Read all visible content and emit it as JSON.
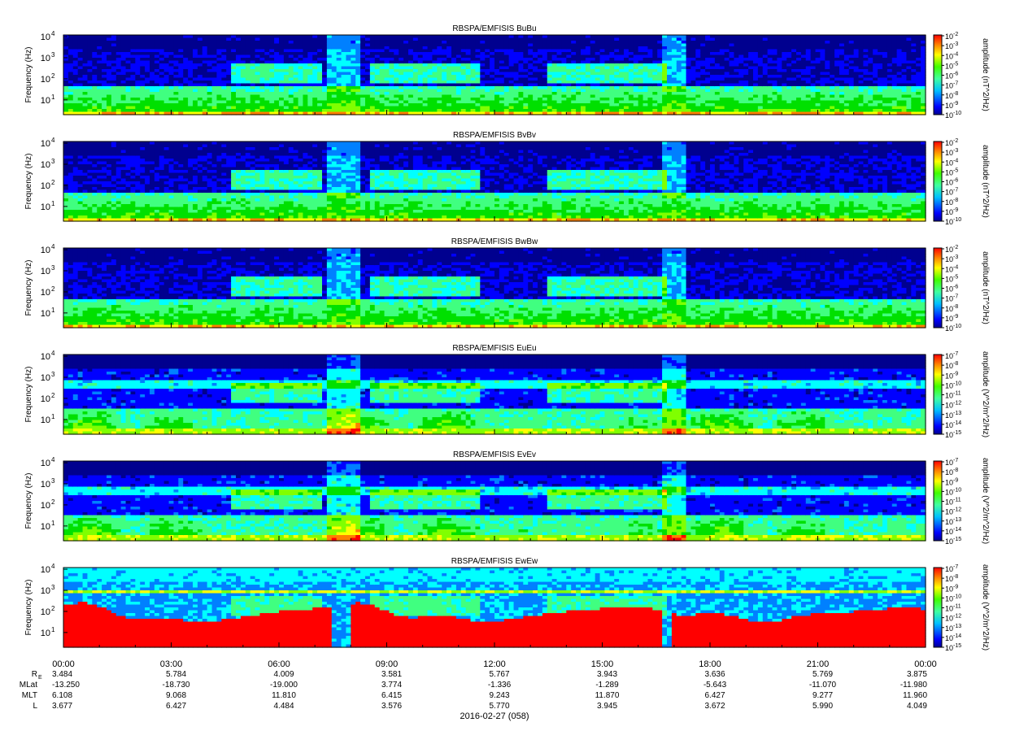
{
  "chart_data": {
    "type": "heatmap",
    "date_label": "2016-02-27 (058)",
    "time_ticks": [
      "00:00",
      "03:00",
      "06:00",
      "09:00",
      "12:00",
      "15:00",
      "18:00",
      "21:00",
      "00:00"
    ],
    "ylabel": "Frequency (Hz)",
    "y_scale": "log",
    "ylim": [
      2,
      12000
    ],
    "y_ticks": [
      {
        "value": 10,
        "mant": "10",
        "exp": "1"
      },
      {
        "value": 100,
        "mant": "10",
        "exp": "2"
      },
      {
        "value": 1000,
        "mant": "10",
        "exp": "3"
      },
      {
        "value": 10000,
        "mant": "10",
        "exp": "4"
      }
    ],
    "colormap": [
      "#00008f",
      "#0000ff",
      "#0080ff",
      "#00ffff",
      "#40ff80",
      "#00e000",
      "#80ff00",
      "#ffff00",
      "#ff8000",
      "#ff0000"
    ],
    "panels": [
      {
        "title": "RBSPA/EMFISIS  BuBu",
        "cbar_label": "amplitude (nT^2/Hz)",
        "cbar_exps": [
          "-2",
          "-3",
          "-4",
          "-5",
          "-6",
          "-7",
          "-8",
          "-9",
          "-10"
        ]
      },
      {
        "title": "RBSPA/EMFISIS  BvBv",
        "cbar_label": "amplitude (nT^2/Hz)",
        "cbar_exps": [
          "-2",
          "-3",
          "-4",
          "-5",
          "-6",
          "-7",
          "-8",
          "-9",
          "-10"
        ]
      },
      {
        "title": "RBSPA/EMFISIS  BwBw",
        "cbar_label": "amplitude (nT^2/Hz)",
        "cbar_exps": [
          "-2",
          "-3",
          "-4",
          "-5",
          "-6",
          "-7",
          "-8",
          "-9",
          "-10"
        ]
      },
      {
        "title": "RBSPA/EMFISIS  EuEu",
        "cbar_label": "amplitude (V^2/m^2/Hz)",
        "cbar_exps": [
          "-7",
          "-8",
          "-9",
          "-10",
          "-11",
          "-12",
          "-13",
          "-14",
          "-15"
        ]
      },
      {
        "title": "RBSPA/EMFISIS  EvEv",
        "cbar_label": "amplitude (V^2/m^2/Hz)",
        "cbar_exps": [
          "-7",
          "-8",
          "-9",
          "-10",
          "-11",
          "-12",
          "-13",
          "-14",
          "-15"
        ]
      },
      {
        "title": "RBSPA/EMFISIS  EwEw",
        "cbar_label": "amplitude (V^2/m^2/Hz)",
        "cbar_exps": [
          "-7",
          "-8",
          "-9",
          "-10",
          "-11",
          "-12",
          "-13",
          "-14",
          "-15"
        ]
      }
    ],
    "ephemeris": [
      {
        "label": "R",
        "sub": "E",
        "values": [
          "3.484",
          "5.784",
          "4.009",
          "3.581",
          "5.767",
          "3.943",
          "3.636",
          "5.769",
          "3.875"
        ]
      },
      {
        "label": "MLat",
        "sub": "",
        "values": [
          "-13.250",
          "-18.730",
          "-19.000",
          "3.774",
          "-1.336",
          "-1.289",
          "-5.643",
          "-11.070",
          "-11.980"
        ]
      },
      {
        "label": "MLT",
        "sub": "",
        "values": [
          "6.108",
          "9.068",
          "11.810",
          "6.415",
          "9.243",
          "11.870",
          "6.427",
          "9.277",
          "11.960"
        ]
      },
      {
        "label": "L",
        "sub": "",
        "values": [
          "3.677",
          "6.427",
          "4.484",
          "3.576",
          "5.770",
          "3.945",
          "3.672",
          "5.990",
          "4.049"
        ]
      }
    ]
  }
}
